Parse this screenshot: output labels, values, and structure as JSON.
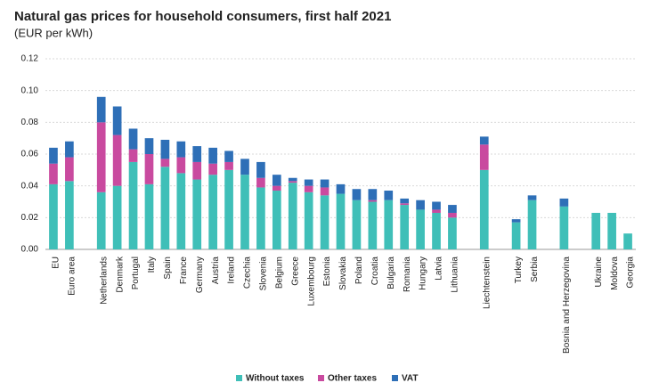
{
  "chart_data": {
    "type": "stacked-bar",
    "title": "Natural gas prices for household consumers, first half 2021",
    "subtitle": "(EUR per kWh)",
    "categories": [
      "EU",
      "Euro area",
      null,
      "Netherlands",
      "Denmark",
      "Portugal",
      "Italy",
      "Spain",
      "France",
      "Germany",
      "Austria",
      "Ireland",
      "Czechia",
      "Slovenia",
      "Belgium",
      "Greece",
      "Luxembourg",
      "Estonia",
      "Slovakia",
      "Poland",
      "Croatia",
      "Bulgaria",
      "Romania",
      "Hungary",
      "Latvia",
      "Lithuania",
      null,
      "Liechtenstein",
      null,
      "Turkey",
      "Serbia",
      null,
      "Bosnia and Herzegovina",
      null,
      "Ukraine",
      "Moldova",
      "Georgia"
    ],
    "series": [
      {
        "name": "Without taxes",
        "color": "#3fbfb8",
        "values": [
          0.041,
          0.043,
          null,
          0.036,
          0.04,
          0.055,
          0.041,
          0.052,
          0.048,
          0.044,
          0.047,
          0.05,
          0.047,
          0.039,
          0.037,
          0.042,
          0.036,
          0.034,
          0.035,
          0.031,
          0.03,
          0.031,
          0.028,
          0.025,
          0.023,
          0.02,
          null,
          0.05,
          null,
          0.017,
          0.031,
          null,
          0.027,
          null,
          0.023,
          0.023,
          0.01
        ]
      },
      {
        "name": "Other taxes",
        "color": "#c94a9f",
        "values": [
          0.013,
          0.015,
          null,
          0.044,
          0.032,
          0.008,
          0.019,
          0.005,
          0.01,
          0.011,
          0.007,
          0.005,
          0,
          0.006,
          0.003,
          0.001,
          0.004,
          0.005,
          0,
          0,
          0.001,
          0,
          0.001,
          0,
          0.002,
          0.003,
          null,
          0.016,
          null,
          0,
          0,
          null,
          0,
          null,
          0,
          0,
          0
        ]
      },
      {
        "name": "VAT",
        "color": "#2e6fb7",
        "values": [
          0.01,
          0.01,
          null,
          0.016,
          0.018,
          0.013,
          0.01,
          0.012,
          0.01,
          0.01,
          0.01,
          0.007,
          0.01,
          0.01,
          0.007,
          0.002,
          0.004,
          0.005,
          0.006,
          0.007,
          0.007,
          0.006,
          0.003,
          0.006,
          0.005,
          0.005,
          null,
          0.005,
          null,
          0.002,
          0.003,
          null,
          0.005,
          null,
          0,
          0,
          0
        ]
      }
    ],
    "ylim": [
      0,
      0.12
    ],
    "yticks": [
      {
        "value": 0,
        "label": "0.00"
      },
      {
        "value": 0.02,
        "label": "0.02"
      },
      {
        "value": 0.04,
        "label": "0.04"
      },
      {
        "value": 0.06,
        "label": "0.06"
      },
      {
        "value": 0.08,
        "label": "0.08"
      },
      {
        "value": 0.1,
        "label": "0.10"
      },
      {
        "value": 0.12,
        "label": "0.12"
      }
    ],
    "grid": true,
    "legend": "bottom"
  }
}
